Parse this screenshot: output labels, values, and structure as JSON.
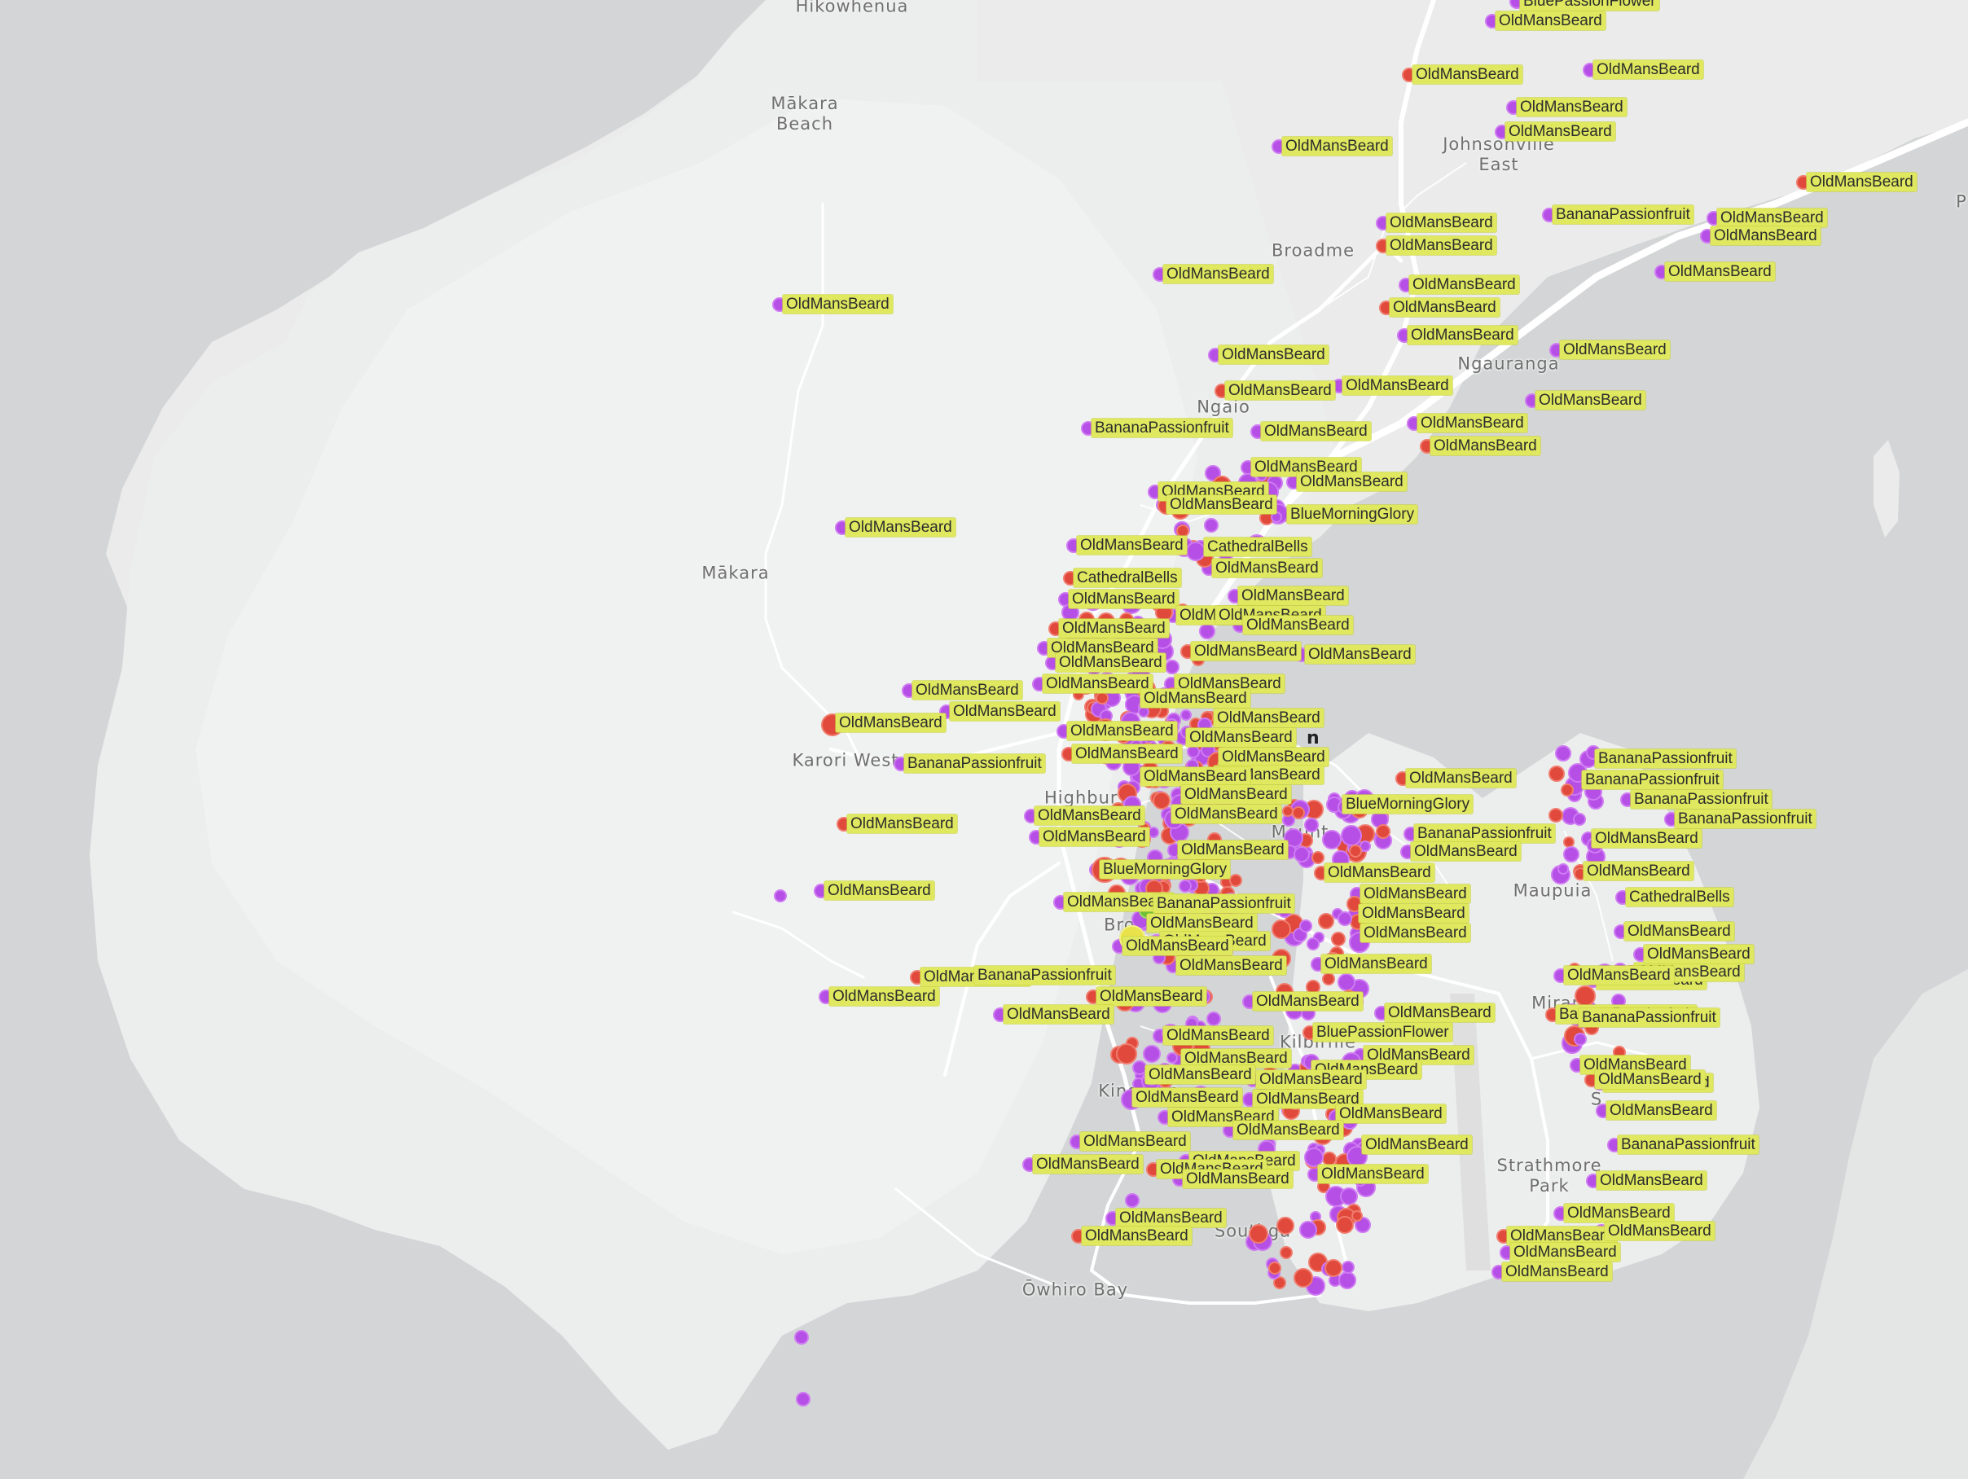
{
  "map": {
    "colors": {
      "water": "#d3d5d6",
      "land": "#eaebea",
      "land_light": "#f4f5f4",
      "road": "#ffffff",
      "label_bg": "#dfe85f",
      "observation_purple": "#b54fe6",
      "observation_red": "#e0493b"
    },
    "places": [
      {
        "id": "hikowhenua",
        "name": "Hikowhenua"
      },
      {
        "id": "makara-beach",
        "name": "Mākara\nBeach"
      },
      {
        "id": "johnsonville-east",
        "name": "Johnsonville\nEast"
      },
      {
        "id": "broadmeadows",
        "name": "Broadme"
      },
      {
        "id": "ngauranga",
        "name": "Ngauranga"
      },
      {
        "id": "ngaio",
        "name": "Ngaio"
      },
      {
        "id": "makara",
        "name": "Mākara"
      },
      {
        "id": "karori-west",
        "name": "Karori West"
      },
      {
        "id": "highbury",
        "name": "Highbury"
      },
      {
        "id": "mount-victoria",
        "name": "Mount"
      },
      {
        "id": "maupuia",
        "name": "Maupuia"
      },
      {
        "id": "brooklyn",
        "name": "Brookly"
      },
      {
        "id": "miramar",
        "name": "Miran"
      },
      {
        "id": "kilbirnie",
        "name": "Kilbirnie"
      },
      {
        "id": "kingston",
        "name": "Kingston"
      },
      {
        "id": "strathmore-park",
        "name": "Strathmore\nPark"
      },
      {
        "id": "southgate",
        "name": "Southga"
      },
      {
        "id": "owhiro-bay",
        "name": "Ōwhiro Bay"
      },
      {
        "id": "seatoun",
        "name": "S"
      },
      {
        "id": "edge-p",
        "name": "P"
      }
    ],
    "species_labels": [
      "BluePassionFlower",
      "OldMansBeard",
      "OldMansBeard",
      "OldMansBeard",
      "OldMansBeard",
      "OldMansBeard",
      "OldMansBeard",
      "OldMansBeard",
      "BananaPassionfruit",
      "OldMansBeard",
      "OldMansBeard",
      "OldMansBeard",
      "OldMansBeard",
      "OldMansBeard",
      "OldMansBeard",
      "OldMansBeard",
      "OldMansBeard",
      "OldMansBeard",
      "OldMansBeard",
      "OldMansBeard",
      "OldMansBeard",
      "OldMansBeard",
      "OldMansBeard",
      "OldMansBeard",
      "BananaPassionfruit",
      "OldMansBeard",
      "OldMansBeard",
      "OldMansBeard",
      "OldMansBeard",
      "OldMansBeard",
      "OldMansBeard",
      "OldMansBeard",
      "BlueMorningGlory",
      "OldMansBeard",
      "OldMansBeard",
      "CathedralBells",
      "OldMansBeard",
      "CathedralBells",
      "OldMansBeard",
      "OldMansBeard",
      "OldMansBeard",
      "OldMansBeard",
      "OldMansBeard",
      "OldMansBeard",
      "OldMansBeard",
      "OldMansBeard",
      "OldMansBeard",
      "OldMansBeard",
      "OldMansBeard",
      "OldMansBeard",
      "OldMansBeard",
      "OldMansBeard",
      "OldMansBeard",
      "OldMansBeard",
      "OldMansBeard",
      "OldMansBeard",
      "OldMansBeard",
      "OldMansBeard",
      "OldMansBeard",
      "BananaPassionfruit",
      "OldMansBeard",
      "OldMansBeard",
      "OldMansBeard",
      "OldMansBeard",
      "OldMansBeard",
      "BlueMorningGlory",
      "OldMansBeard",
      "OldMansBeard",
      "OldMansBeard",
      "BananaPassionfruit",
      "OldMansBeard",
      "OldMansBeard",
      "OldMansBeard",
      "BlueMorningGlory",
      "OldMansBeard",
      "OldMansBeard",
      "OldMansBeard",
      "BananaPassionfruit",
      "OldMansBeard",
      "OldMansBeard",
      "OldMansBeard",
      "OldMansBeard",
      "OldMansBeard",
      "OldMansBeard",
      "OldMansBeard",
      "OldMansBeard",
      "OldMansBeard",
      "OldMansBeard",
      "BananaPassionfruit",
      "OldMansBeard",
      "OldMansBeard",
      "OldMansBeard",
      "BluePassionFlower",
      "OldMansBeard",
      "OldMansBeard",
      "OldMansBeard",
      "OldMansBeard",
      "BananaPassionfruit",
      "OldMansBeard",
      "OldMansBeard",
      "OldMansBeard",
      "OldMansBeard",
      "OldMansBeard",
      "OldMansBeard",
      "OldMansBeard",
      "OldMansBeard",
      "OldMansBeard",
      "OldMansBeard",
      "OldMansBeard",
      "OldMansBeard",
      "OldMansBeard",
      "OldMansBeard",
      "OldMansBeard",
      "OldMansBeard",
      "OldMansBeard",
      "OldMansBeard",
      "BananaPassionfruit",
      "BananaPassionfruit",
      "BananaPassionfruit",
      "BananaPassionfruit",
      "BananaPassionfruit",
      "OldMansBeard",
      "OldMansBeard",
      "CathedralBells",
      "OldMansBeard",
      "OldMansBeard",
      "OldMansBeard",
      "OldMansBeard",
      "OldMansBeard",
      "BananaPassionfruit",
      "OldMansBeard",
      "OldMansBeard",
      "OldMansBeard",
      "OldMansBeard",
      "OldMansBeard",
      "OldMansBeard",
      "OldMansBeard",
      "OldMansBeard"
    ],
    "marker_glyph": "n"
  }
}
